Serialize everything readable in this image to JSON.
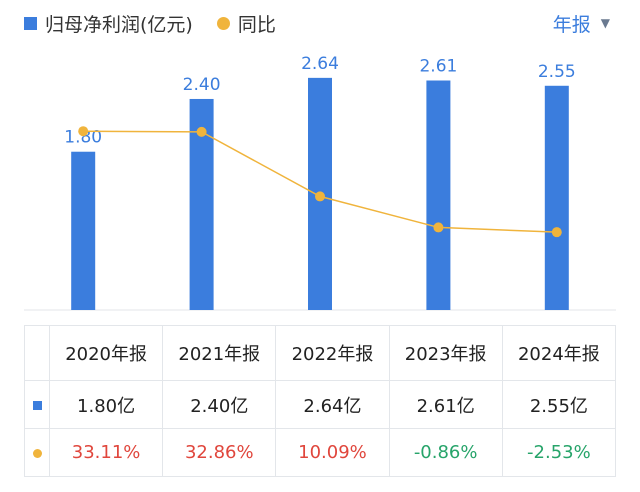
{
  "legend": {
    "bar_label": "归母净利润(亿元)",
    "line_label": "同比"
  },
  "period_selector": {
    "label": "年报"
  },
  "chart_data": {
    "type": "bar",
    "categories": [
      "2020年报",
      "2021年报",
      "2022年报",
      "2023年报",
      "2024年报"
    ],
    "series": [
      {
        "name": "归母净利润(亿元)",
        "type": "bar",
        "values": [
          1.8,
          2.4,
          2.64,
          2.61,
          2.55
        ],
        "labels": [
          "1.80",
          "2.40",
          "2.64",
          "2.61",
          "2.55"
        ]
      },
      {
        "name": "同比",
        "type": "line",
        "values": [
          33.11,
          32.86,
          10.09,
          -0.86,
          -2.53
        ]
      }
    ],
    "ylim": [
      0,
      2.9
    ],
    "line_ylim": [
      -30,
      60
    ],
    "colors": {
      "bar": "#3b7ddd",
      "line": "#f0b43c",
      "positive": "#e0463c",
      "negative": "#27a46a"
    }
  },
  "table": {
    "headers": [
      "2020年报",
      "2021年报",
      "2022年报",
      "2023年报",
      "2024年报"
    ],
    "profit_row": [
      "1.80亿",
      "2.40亿",
      "2.64亿",
      "2.61亿",
      "2.55亿"
    ],
    "yoy_row": [
      "33.11%",
      "32.86%",
      "10.09%",
      "-0.86%",
      "-2.53%"
    ]
  }
}
